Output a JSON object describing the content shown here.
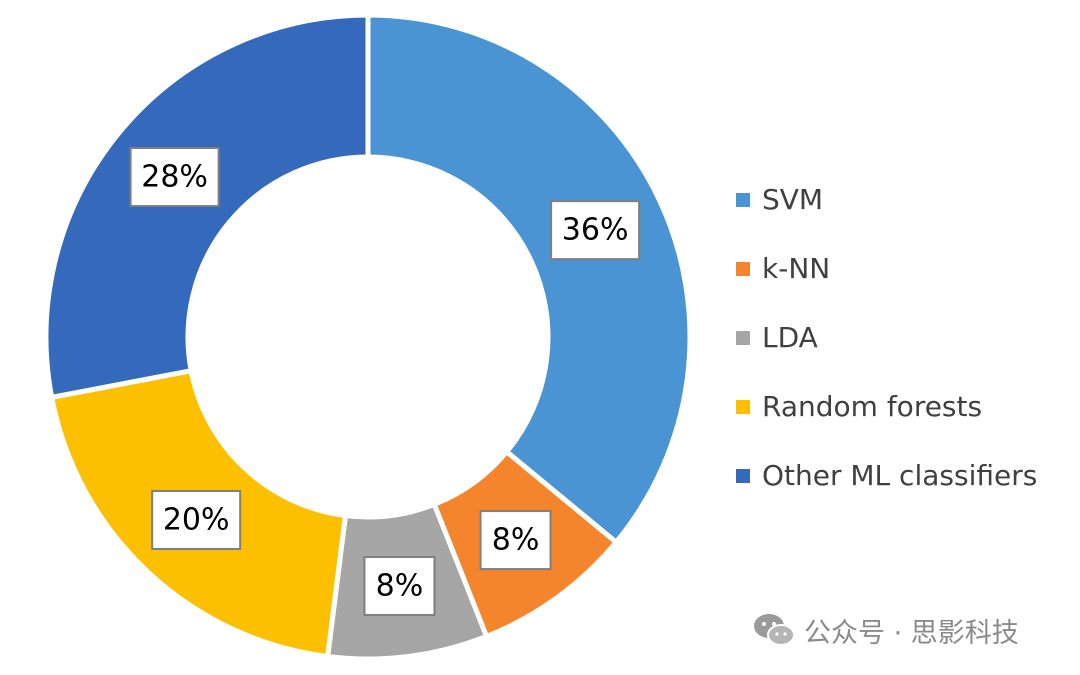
{
  "chart_data": {
    "type": "pie",
    "variant": "donut",
    "title": "",
    "legend_position": "right",
    "categories": [
      "SVM",
      "k-NN",
      "LDA",
      "Random forests",
      "Other ML classifiers"
    ],
    "values": [
      36,
      8,
      8,
      20,
      28
    ],
    "labels": [
      "36%",
      "8%",
      "8%",
      "20%",
      "28%"
    ],
    "colors": [
      "#4a94d3",
      "#f5852d",
      "#a6a6a6",
      "#fdc000",
      "#3469bc"
    ]
  },
  "watermark": {
    "text": "公众号 · 思影科技",
    "icon": "wechat-icon"
  }
}
